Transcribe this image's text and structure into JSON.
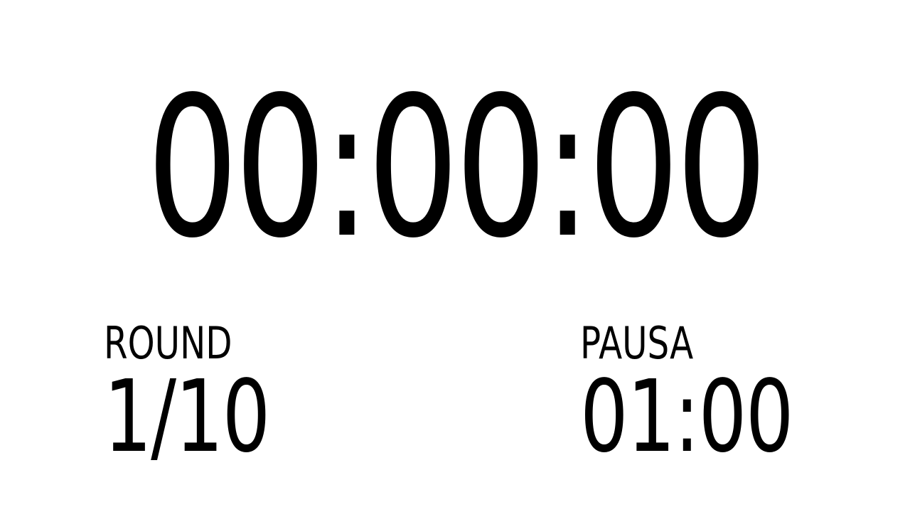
{
  "timer": {
    "main_time": "00:00:00"
  },
  "round": {
    "label": "ROUND",
    "value": "1/10"
  },
  "pause": {
    "label": "PAUSA",
    "value": "01:00"
  }
}
